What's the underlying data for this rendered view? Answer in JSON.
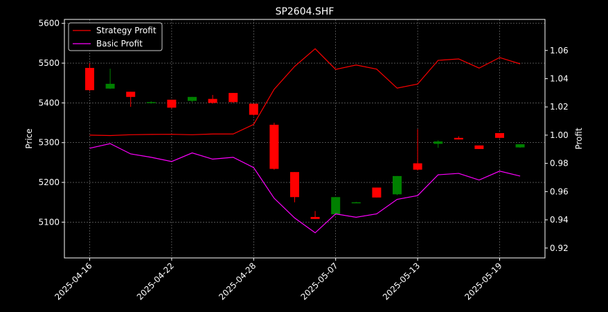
{
  "chart_data": {
    "type": "candlestick",
    "title": "SP2604.SHF",
    "xlabel": "",
    "ylabel_left": "Price",
    "ylabel_right": "Profit",
    "ylim_left": [
      5010,
      5610
    ],
    "ylim_right": [
      0.913,
      1.082
    ],
    "yticks_left": [
      "5100",
      "5200",
      "5300",
      "5400",
      "5500",
      "5600"
    ],
    "yticks_right": [
      "0.92",
      "0.94",
      "0.96",
      "0.98",
      "1.00",
      "1.02",
      "1.04",
      "1.06"
    ],
    "xtick_labels": [
      "2025-04-16",
      "2025-04-22",
      "2025-04-28",
      "2025-05-07",
      "2025-05-13",
      "2025-05-19"
    ],
    "xtick_positions": [
      0,
      4,
      8,
      12,
      16,
      20
    ],
    "grid": true,
    "legend_position": "upper-left",
    "colors": {
      "up": "#008000",
      "down": "#ff0000",
      "strategy": "#ff0000",
      "basic": "#ff00ff",
      "background": "#000000",
      "text": "#ffffff",
      "grid": "#808080"
    },
    "candles": [
      {
        "o": 5488,
        "h": 5500,
        "l": 5430,
        "c": 5432
      },
      {
        "o": 5436,
        "h": 5486,
        "l": 5435,
        "c": 5448
      },
      {
        "o": 5428,
        "h": 5428,
        "l": 5390,
        "c": 5415
      },
      {
        "o": 5400,
        "h": 5404,
        "l": 5398,
        "c": 5402
      },
      {
        "o": 5408,
        "h": 5408,
        "l": 5386,
        "c": 5388
      },
      {
        "o": 5405,
        "h": 5415,
        "l": 5402,
        "c": 5415
      },
      {
        "o": 5410,
        "h": 5420,
        "l": 5398,
        "c": 5400
      },
      {
        "o": 5425,
        "h": 5425,
        "l": 5400,
        "c": 5402
      },
      {
        "o": 5398,
        "h": 5398,
        "l": 5368,
        "c": 5370
      },
      {
        "o": 5345,
        "h": 5350,
        "l": 5232,
        "c": 5234
      },
      {
        "o": 5226,
        "h": 5226,
        "l": 5150,
        "c": 5163
      },
      {
        "o": 5113,
        "h": 5128,
        "l": 5108,
        "c": 5108
      },
      {
        "o": 5120,
        "h": 5163,
        "l": 5120,
        "c": 5163
      },
      {
        "o": 5150,
        "h": 5151,
        "l": 5149,
        "c": 5150
      },
      {
        "o": 5187,
        "h": 5187,
        "l": 5162,
        "c": 5162
      },
      {
        "o": 5170,
        "h": 5216,
        "l": 5168,
        "c": 5216
      },
      {
        "o": 5248,
        "h": 5334,
        "l": 5230,
        "c": 5232
      },
      {
        "o": 5297,
        "h": 5306,
        "l": 5287,
        "c": 5303
      },
      {
        "o": 5312,
        "h": 5316,
        "l": 5308,
        "c": 5308
      },
      {
        "o": 5293,
        "h": 5293,
        "l": 5284,
        "c": 5284
      },
      {
        "o": 5324,
        "h": 5324,
        "l": 5311,
        "c": 5312
      },
      {
        "o": 5288,
        "h": 5296,
        "l": 5287,
        "c": 5296
      }
    ],
    "series": [
      {
        "name": "Strategy Profit",
        "axis": "right",
        "values": [
          1.0,
          0.9997,
          1.0003,
          1.0005,
          1.0006,
          1.0003,
          1.0008,
          1.0008,
          1.0076,
          1.0325,
          1.0487,
          1.0612,
          1.0466,
          1.0497,
          1.0468,
          1.0333,
          1.0362,
          1.053,
          1.054,
          1.0475,
          1.055,
          1.0505
        ]
      },
      {
        "name": "Basic Profit",
        "axis": "right",
        "values": [
          0.9907,
          0.994,
          0.9867,
          0.9843,
          0.9813,
          0.9874,
          0.983,
          0.9843,
          0.977,
          0.9553,
          0.9413,
          0.9308,
          0.9442,
          0.9418,
          0.9442,
          0.9545,
          0.9572,
          0.9719,
          0.9729,
          0.9682,
          0.9745,
          0.971
        ]
      }
    ]
  }
}
